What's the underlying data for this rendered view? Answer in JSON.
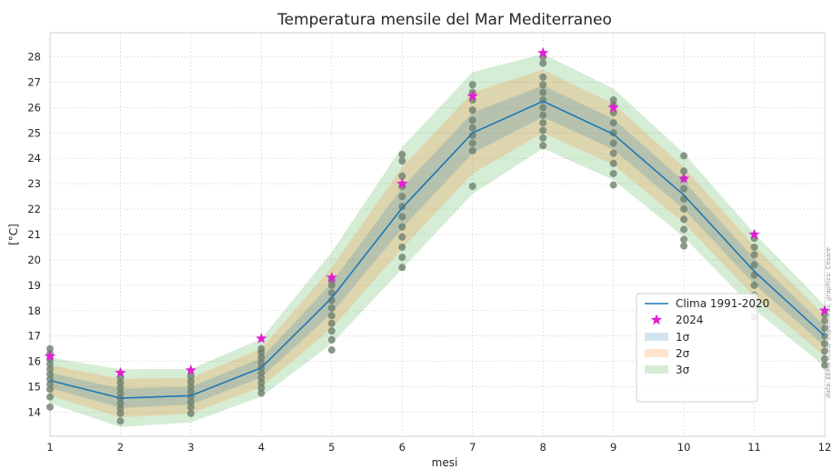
{
  "chart_data": {
    "type": "line",
    "title": "Temperatura mensile del Mar Mediterraneo",
    "xlabel": "mesi",
    "ylabel": "[°C]",
    "x": [
      1,
      2,
      3,
      4,
      5,
      6,
      7,
      8,
      9,
      10,
      11,
      12
    ],
    "x_ticks": [
      "1",
      "2",
      "3",
      "4",
      "5",
      "6",
      "7",
      "8",
      "9",
      "10",
      "11",
      "12"
    ],
    "y_ticks": [
      "14",
      "15",
      "16",
      "17",
      "18",
      "19",
      "20",
      "21",
      "22",
      "23",
      "24",
      "25",
      "26",
      "27",
      "28"
    ],
    "xlim": [
      1,
      12
    ],
    "ylim": [
      13.05,
      28.95
    ],
    "grid": true,
    "legend_position": "lower-right",
    "legend": {
      "clima": "Clima 1991-2020",
      "year": "2024",
      "s1": "1σ",
      "s2": "2σ",
      "s3": "3σ"
    },
    "climatology": [
      15.25,
      14.55,
      14.65,
      15.75,
      18.5,
      22.05,
      25.0,
      26.25,
      24.95,
      22.55,
      19.55,
      17.0
    ],
    "sigma": [
      0.3,
      0.38,
      0.35,
      0.38,
      0.6,
      0.8,
      0.8,
      0.62,
      0.6,
      0.55,
      0.5,
      0.4
    ],
    "year_2024": [
      16.2,
      15.55,
      15.65,
      16.9,
      19.3,
      23.0,
      26.45,
      28.15,
      26.0,
      23.2,
      21.0,
      18.0
    ],
    "historical": [
      [
        14.2,
        14.6,
        14.9,
        15.1,
        15.3,
        15.5,
        15.7,
        15.9,
        16.1,
        16.3,
        16.5
      ],
      [
        13.65,
        13.95,
        14.15,
        14.35,
        14.55,
        14.75,
        14.95,
        15.15,
        15.35
      ],
      [
        13.95,
        14.2,
        14.4,
        14.6,
        14.8,
        15.0,
        15.2,
        15.4
      ],
      [
        14.75,
        14.95,
        15.15,
        15.35,
        15.55,
        15.75,
        15.95,
        16.15,
        16.35,
        16.5
      ],
      [
        16.45,
        16.85,
        17.2,
        17.5,
        17.8,
        18.1,
        18.4,
        18.7,
        19.0,
        19.2
      ],
      [
        19.7,
        20.1,
        20.5,
        20.9,
        21.3,
        21.7,
        22.1,
        22.5,
        22.9,
        23.3,
        23.9,
        24.15
      ],
      [
        22.9,
        24.3,
        24.6,
        24.9,
        25.2,
        25.5,
        25.9,
        26.3,
        26.6,
        26.9
      ],
      [
        24.5,
        24.8,
        25.1,
        25.4,
        25.7,
        26.0,
        26.3,
        26.6,
        26.9,
        27.2,
        27.75,
        28.0
      ],
      [
        22.95,
        23.4,
        23.8,
        24.2,
        24.6,
        25.0,
        25.4,
        25.8,
        26.1,
        26.3
      ],
      [
        20.55,
        20.8,
        21.2,
        21.6,
        22.0,
        22.4,
        22.8,
        23.2,
        23.5,
        24.1
      ],
      [
        17.75,
        18.2,
        18.6,
        19.0,
        19.4,
        19.8,
        20.2,
        20.5,
        20.85
      ],
      [
        15.85,
        16.1,
        16.4,
        16.7,
        17.0,
        17.3,
        17.6,
        17.85
      ]
    ],
    "colors": {
      "clima": "#1f77b4",
      "year": "#e01fd3",
      "s1": "#1f77b4",
      "s2": "#ff7f0e",
      "s3": "#2ca02c",
      "points": "#6e7f6e"
    },
    "credit": "data: EEMS (C3S) Copernicus, graphics: Cesare"
  }
}
